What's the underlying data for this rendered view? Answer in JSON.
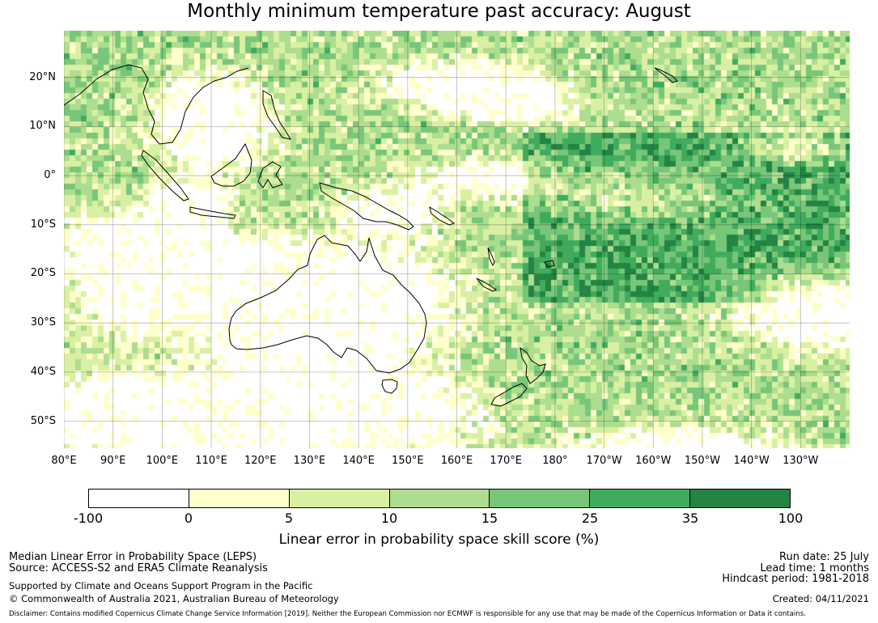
{
  "title": "Monthly minimum temperature past accuracy: August",
  "map": {
    "lat_labels": [
      "20°N",
      "10°N",
      "0°",
      "10°S",
      "20°S",
      "30°S",
      "40°S",
      "50°S"
    ],
    "lon_labels": [
      "80°E",
      "90°E",
      "100°E",
      "110°E",
      "120°E",
      "130°E",
      "140°E",
      "150°E",
      "160°E",
      "170°E",
      "180°",
      "170°W",
      "160°W",
      "150°W",
      "140°W",
      "130°W"
    ],
    "extent": {
      "lon_min": 80,
      "lon_max": 240,
      "lat_min": -55.5,
      "lat_max": 29.5
    }
  },
  "colorbar": {
    "ticks": [
      "-100",
      "0",
      "5",
      "10",
      "15",
      "25",
      "35",
      "100"
    ],
    "colors": [
      "#ffffff",
      "#ffffcc",
      "#d9f0a3",
      "#addd8e",
      "#78c679",
      "#41ab5d",
      "#238443"
    ],
    "label": "Linear error in probability space skill score (%)"
  },
  "footer": {
    "line1": "Median Linear Error in Probability Space (LEPS)",
    "line2": "Source: ACCESS-S2 and ERA5 Climate Reanalysis",
    "line3": "Supported by Climate and Oceans Support Program in the Pacific",
    "line4": "© Commonwealth of Australia 2021, Australian Bureau of Meteorology",
    "run_date": "Run date: 25 July",
    "lead_time": "Lead time: 1 months",
    "hindcast": "Hindcast period: 1981-2018",
    "created": "Created: 04/11/2021",
    "disclaimer": "Disclaimer: Contains modified Copernicus Climate Change Service Information [2019]. Neither the European Commission nor ECMWF is responsible for any use that may be made of the Copernicus Information or Data it contains."
  }
}
